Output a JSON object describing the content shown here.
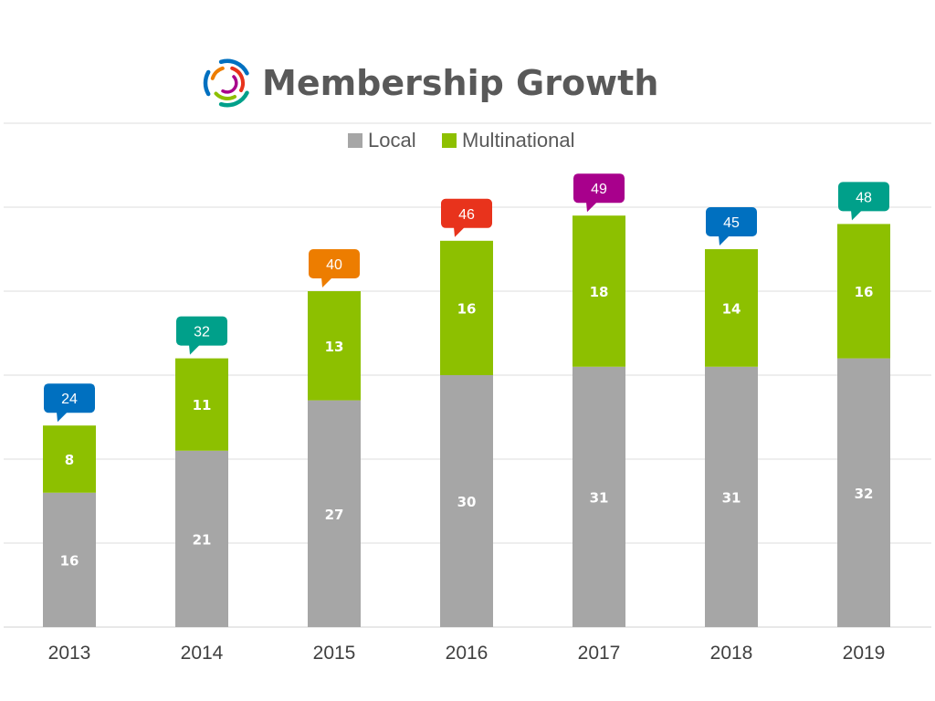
{
  "title": "Membership Growth",
  "chart_data": {
    "type": "bar",
    "stacked": true,
    "categories": [
      "2013",
      "2014",
      "2015",
      "2016",
      "2017",
      "2018",
      "2019"
    ],
    "series": [
      {
        "name": "Local",
        "color": "#a6a6a6",
        "values": [
          16,
          21,
          27,
          30,
          31,
          31,
          32
        ]
      },
      {
        "name": "Multinational",
        "color": "#8dc000",
        "values": [
          8,
          11,
          13,
          16,
          18,
          14,
          16
        ]
      }
    ],
    "totals": [
      24,
      32,
      40,
      46,
      49,
      45,
      48
    ],
    "total_label_colors": [
      "#0070c0",
      "#00a08a",
      "#ed7d00",
      "#e8331c",
      "#a8008c",
      "#0070c0",
      "#00a08a"
    ],
    "ylim": [
      0,
      60
    ],
    "y_gridlines": [
      0,
      10,
      20,
      30,
      40,
      50,
      60
    ],
    "grid": true,
    "legend_position": "top",
    "xlabel": "",
    "ylabel": ""
  }
}
